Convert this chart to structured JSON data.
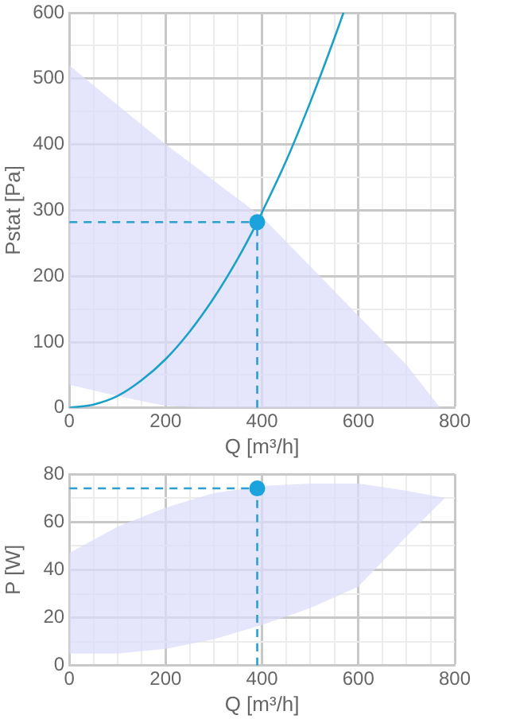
{
  "chart_data": [
    {
      "type": "line",
      "xlabel": "Q [m³/h]",
      "ylabel": "Pstat [Pa]",
      "xlim": [
        0,
        800
      ],
      "ylim": [
        0,
        600
      ],
      "xticks": [
        0,
        {
          "value": 50,
          "label": null
        },
        {
          "value": 100,
          "label": null
        },
        {
          "value": 150,
          "label": null
        },
        200,
        {
          "value": 250,
          "label": null
        },
        {
          "value": 300,
          "label": null
        },
        {
          "value": 350,
          "label": null
        },
        400,
        {
          "value": 450,
          "label": null
        },
        {
          "value": 500,
          "label": null
        },
        {
          "value": 550,
          "label": null
        },
        600,
        {
          "value": 650,
          "label": null
        },
        {
          "value": 700,
          "label": null
        },
        {
          "value": 750,
          "label": null
        },
        800
      ],
      "yticks": [
        0,
        {
          "value": 50,
          "label": null
        },
        100,
        {
          "value": 150,
          "label": null
        },
        200,
        {
          "value": 250,
          "label": null
        },
        300,
        {
          "value": 350,
          "label": null
        },
        400,
        {
          "value": 450,
          "label": null
        },
        500,
        {
          "value": 550,
          "label": null
        },
        600
      ],
      "grid": true,
      "legend": false,
      "series": [
        {
          "type": "area",
          "color": "#dcdcfa",
          "x": [
            0,
            100,
            200,
            300,
            400,
            500,
            600,
            700,
            770
          ],
          "values": [
            null,
            null,
            null,
            null,
            null,
            null,
            null,
            null,
            null
          ],
          "upper": [
            520,
            460,
            400,
            345,
            290,
            215,
            140,
            65,
            0
          ],
          "lower": [
            35,
            18,
            3,
            0,
            0,
            0,
            0,
            0,
            0
          ]
        },
        {
          "type": "line",
          "color": "#1ba1c8",
          "marker": "none",
          "x": [
            0,
            50,
            100,
            150,
            200,
            250,
            300,
            350,
            390,
            400,
            450,
            500,
            550,
            569
          ],
          "values": [
            0,
            5,
            18,
            42,
            74,
            116,
            167,
            227,
            282,
            297,
            375,
            464,
            561,
            600
          ]
        },
        {
          "type": "line",
          "color": "#2a9fd0",
          "line_style": "dashed",
          "marker": "none",
          "x": [
            0,
            390
          ],
          "values": [
            282,
            282
          ]
        },
        {
          "type": "line",
          "color": "#2a9fd0",
          "line_style": "dashed",
          "marker": "none",
          "x": [
            390,
            390
          ],
          "values": [
            0,
            282
          ]
        },
        {
          "type": "scatter",
          "color": "#1aa3dc",
          "marker": "circle",
          "x": [
            390
          ],
          "values": [
            282
          ]
        }
      ]
    },
    {
      "type": "line",
      "xlabel": "Q [m³/h]",
      "ylabel": "P [W]",
      "xlim": [
        0,
        800
      ],
      "ylim": [
        0,
        80
      ],
      "xticks": [
        0,
        {
          "value": 50,
          "label": null
        },
        {
          "value": 100,
          "label": null
        },
        {
          "value": 150,
          "label": null
        },
        200,
        {
          "value": 250,
          "label": null
        },
        {
          "value": 300,
          "label": null
        },
        {
          "value": 350,
          "label": null
        },
        400,
        {
          "value": 450,
          "label": null
        },
        {
          "value": 500,
          "label": null
        },
        {
          "value": 550,
          "label": null
        },
        600,
        {
          "value": 650,
          "label": null
        },
        {
          "value": 700,
          "label": null
        },
        {
          "value": 750,
          "label": null
        },
        800
      ],
      "yticks": [
        0,
        {
          "value": 10,
          "label": null
        },
        20,
        {
          "value": 30,
          "label": null
        },
        40,
        {
          "value": 50,
          "label": null
        },
        60,
        {
          "value": 70,
          "label": null
        },
        80
      ],
      "grid": true,
      "legend": false,
      "series": [
        {
          "type": "area",
          "color": "#dcdcfa",
          "x": [
            0,
            100,
            200,
            300,
            400,
            500,
            600,
            700,
            780
          ],
          "values": [
            null,
            null,
            null,
            null,
            null,
            null,
            null,
            null,
            null
          ],
          "upper": [
            47,
            58,
            66,
            72,
            75,
            76,
            76,
            73,
            70
          ],
          "lower": [
            5,
            5,
            7,
            11,
            17,
            24,
            33,
            54,
            70
          ]
        },
        {
          "type": "line",
          "color": "#2a9fd0",
          "line_style": "dashed",
          "marker": "none",
          "x": [
            0,
            390
          ],
          "values": [
            74,
            74
          ]
        },
        {
          "type": "line",
          "color": "#2a9fd0",
          "line_style": "dashed",
          "marker": "none",
          "x": [
            390,
            390
          ],
          "values": [
            0,
            74
          ]
        },
        {
          "type": "scatter",
          "color": "#1aa3dc",
          "marker": "circle",
          "x": [
            390
          ],
          "values": [
            74
          ]
        }
      ]
    }
  ]
}
